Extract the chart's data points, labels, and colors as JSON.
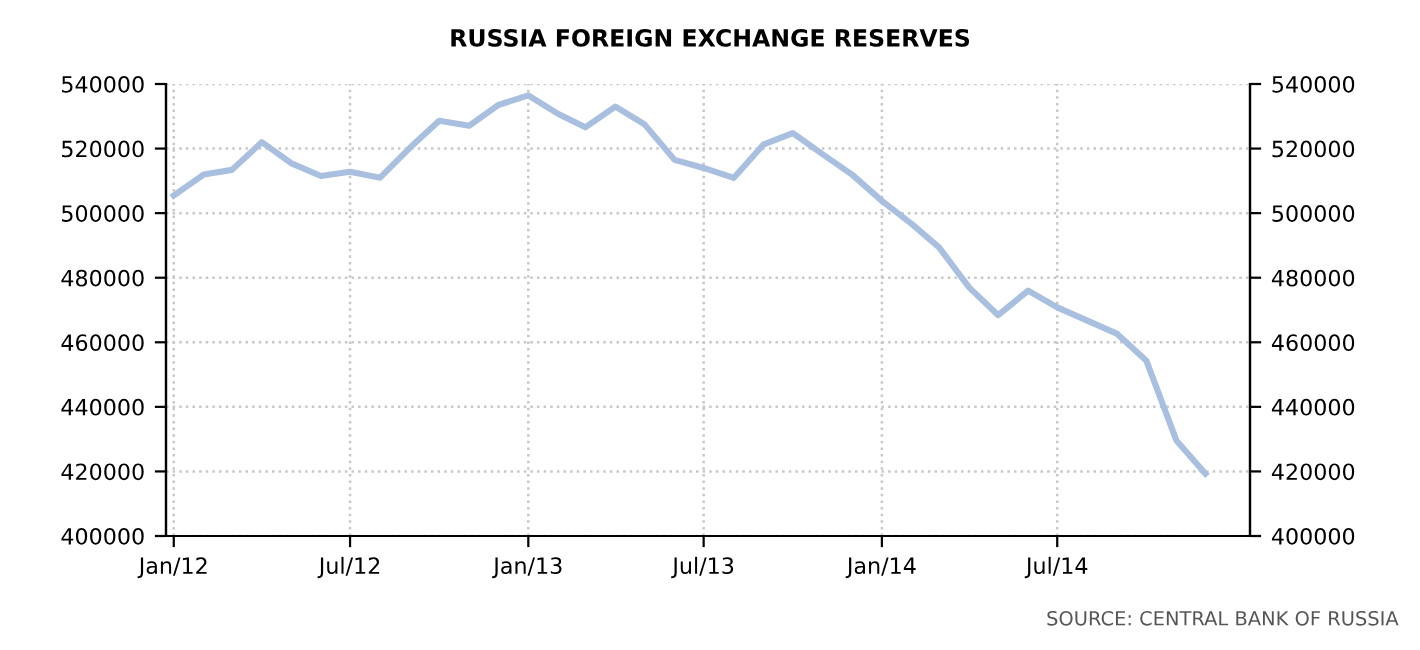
{
  "chart_data": {
    "type": "line",
    "title": "RUSSIA FOREIGN EXCHANGE RESERVES",
    "x": [
      "2012-01",
      "2012-02",
      "2012-03",
      "2012-04",
      "2012-05",
      "2012-06",
      "2012-07",
      "2012-08",
      "2012-09",
      "2012-10",
      "2012-11",
      "2012-12",
      "2013-01",
      "2013-02",
      "2013-03",
      "2013-04",
      "2013-05",
      "2013-06",
      "2013-07",
      "2013-08",
      "2013-09",
      "2013-10",
      "2013-11",
      "2013-12",
      "2014-01",
      "2014-02",
      "2014-03",
      "2014-04",
      "2014-05",
      "2014-06",
      "2014-07",
      "2014-08",
      "2014-09",
      "2014-10",
      "2014-11",
      "2014-12"
    ],
    "series": [
      {
        "color": "#a9bfdf",
        "values": [
          505500,
          512000,
          513400,
          522000,
          515500,
          511500,
          512800,
          511000,
          520300,
          528600,
          527100,
          533500,
          536500,
          530700,
          526600,
          533000,
          527500,
          516500,
          514000,
          510900,
          521300,
          524800,
          518200,
          512000,
          503800,
          496600,
          489400,
          477000,
          468400,
          476000,
          470800,
          466700,
          462600,
          454300,
          429600,
          419300
        ]
      }
    ],
    "xlim": [
      "2011-12-24",
      "2015-01-16"
    ],
    "xticks": [
      {
        "value": "2012-01-01",
        "label": "Jan/12"
      },
      {
        "value": "2012-07-01",
        "label": "Jul/12"
      },
      {
        "value": "2013-01-01",
        "label": "Jan/13"
      },
      {
        "value": "2013-07-01",
        "label": "Jul/13"
      },
      {
        "value": "2014-01-01",
        "label": "Jan/14"
      },
      {
        "value": "2014-07-01",
        "label": "Jul/14"
      }
    ],
    "ylim": [
      400000,
      540000
    ],
    "yticks": [
      400000,
      420000,
      440000,
      460000,
      480000,
      500000,
      520000,
      540000
    ],
    "y2lim": [
      400000,
      540000
    ],
    "y2ticks": [
      400000,
      420000,
      440000,
      460000,
      480000,
      500000,
      520000,
      540000
    ],
    "grid": true,
    "annotations": [
      "SOURCE: CENTRAL BANK OF RUSSIA"
    ]
  }
}
